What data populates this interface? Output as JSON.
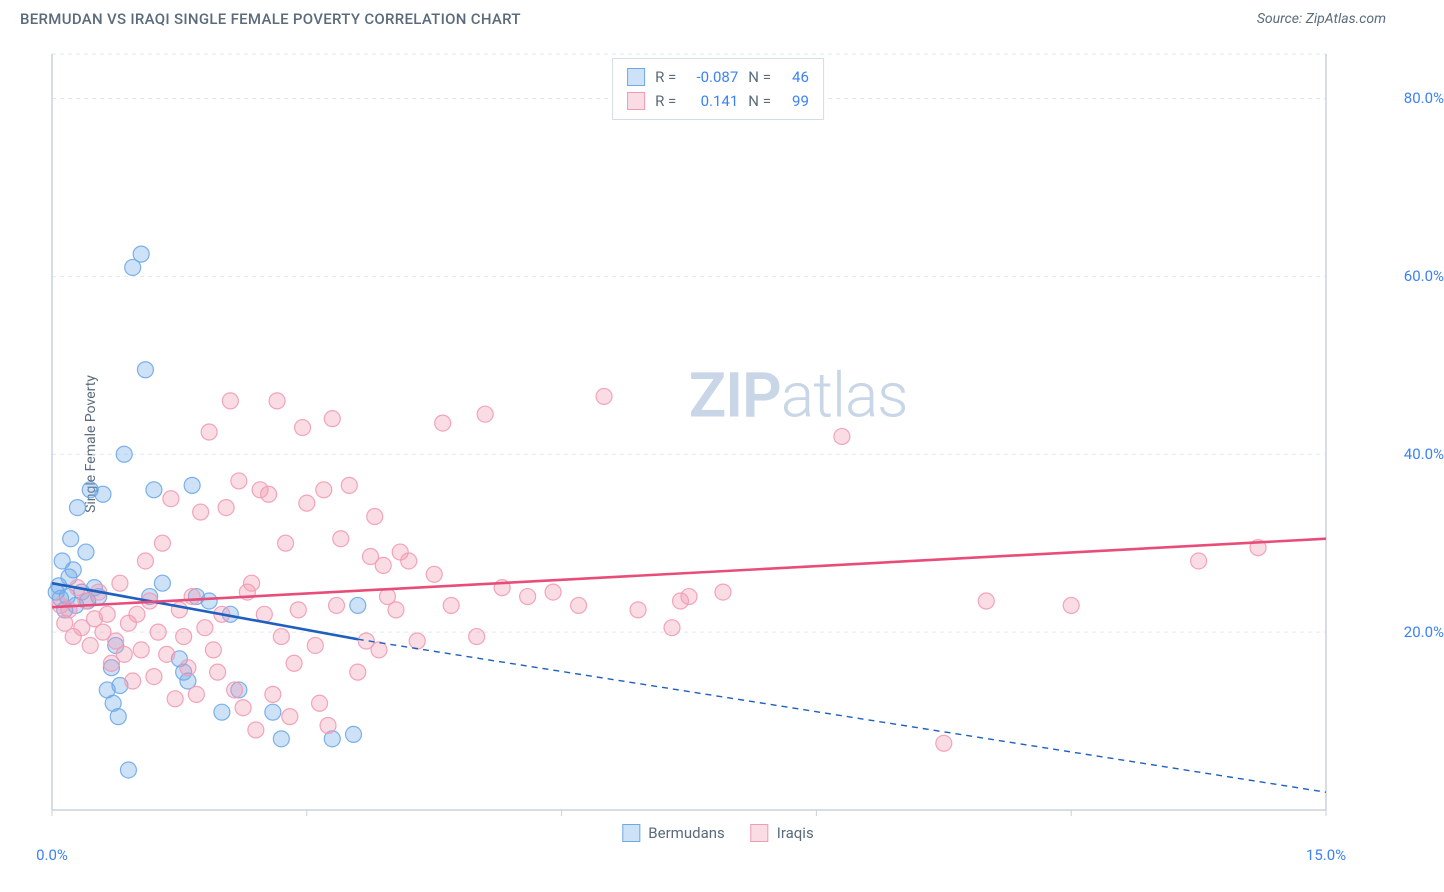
{
  "header": {
    "title": "BERMUDAN VS IRAQI SINGLE FEMALE POVERTY CORRELATION CHART",
    "source": "Source: ZipAtlas.com"
  },
  "watermark": {
    "bold": "ZIP",
    "light": "atlas"
  },
  "chart": {
    "type": "scatter",
    "y_axis_label": "Single Female Poverty",
    "background_color": "#ffffff",
    "grid_color": "#e2e8f0",
    "axis_color": "#c8d2dc",
    "xlim": [
      0,
      15
    ],
    "ylim": [
      0,
      85
    ],
    "x_ticks": [
      0,
      3,
      6,
      9,
      12,
      15
    ],
    "x_tick_labels": [
      "0.0%",
      "",
      "",
      "",
      "",
      "15.0%"
    ],
    "y_ticks": [
      20,
      40,
      60,
      80
    ],
    "y_tick_labels": [
      "20.0%",
      "40.0%",
      "60.0%",
      "80.0%"
    ],
    "marker_radius": 8,
    "marker_fill_opacity": 0.35,
    "marker_stroke_opacity": 0.9,
    "marker_stroke_width": 1.2,
    "trend_line_width": 2.6,
    "dash_pattern": "6 5",
    "series": [
      {
        "key": "bermudans",
        "label": "Bermudans",
        "color": "#6fa8e8",
        "line_color": "#1e5fbf",
        "R": "-0.087",
        "N": "46",
        "trend": {
          "x1": 0,
          "y1": 25.5,
          "x2": 3.6,
          "y2": 19.2,
          "dash_to_x": 15,
          "dash_to_y": 2.0
        },
        "points": [
          [
            0.05,
            24.5
          ],
          [
            0.08,
            25.2
          ],
          [
            0.1,
            23.8
          ],
          [
            0.12,
            28.0
          ],
          [
            0.15,
            22.5
          ],
          [
            0.18,
            24.0
          ],
          [
            0.2,
            26.2
          ],
          [
            0.22,
            30.5
          ],
          [
            0.25,
            27.0
          ],
          [
            0.28,
            23.0
          ],
          [
            0.3,
            34.0
          ],
          [
            0.35,
            24.5
          ],
          [
            0.4,
            29.0
          ],
          [
            0.42,
            23.5
          ],
          [
            0.45,
            36.0
          ],
          [
            0.5,
            25.0
          ],
          [
            0.55,
            24.0
          ],
          [
            0.6,
            35.5
          ],
          [
            0.65,
            13.5
          ],
          [
            0.7,
            16.0
          ],
          [
            0.72,
            12.0
          ],
          [
            0.75,
            18.5
          ],
          [
            0.78,
            10.5
          ],
          [
            0.8,
            14.0
          ],
          [
            0.85,
            40.0
          ],
          [
            0.9,
            4.5
          ],
          [
            0.95,
            61.0
          ],
          [
            1.05,
            62.5
          ],
          [
            1.1,
            49.5
          ],
          [
            1.15,
            24.0
          ],
          [
            1.2,
            36.0
          ],
          [
            1.3,
            25.5
          ],
          [
            1.5,
            17.0
          ],
          [
            1.55,
            15.5
          ],
          [
            1.6,
            14.5
          ],
          [
            1.65,
            36.5
          ],
          [
            1.7,
            24.0
          ],
          [
            1.85,
            23.5
          ],
          [
            2.0,
            11.0
          ],
          [
            2.1,
            22.0
          ],
          [
            2.2,
            13.5
          ],
          [
            2.6,
            11.0
          ],
          [
            2.7,
            8.0
          ],
          [
            3.3,
            8.0
          ],
          [
            3.55,
            8.5
          ],
          [
            3.6,
            23.0
          ]
        ]
      },
      {
        "key": "iraqis",
        "label": "Iraqis",
        "color": "#f29bb3",
        "line_color": "#e84d7a",
        "R": "0.141",
        "N": "99",
        "trend": {
          "x1": 0,
          "y1": 22.8,
          "x2": 15,
          "y2": 30.5
        },
        "points": [
          [
            0.1,
            23.0
          ],
          [
            0.15,
            21.0
          ],
          [
            0.2,
            22.5
          ],
          [
            0.25,
            19.5
          ],
          [
            0.3,
            25.0
          ],
          [
            0.35,
            20.5
          ],
          [
            0.4,
            23.5
          ],
          [
            0.45,
            18.5
          ],
          [
            0.5,
            21.5
          ],
          [
            0.55,
            24.5
          ],
          [
            0.6,
            20.0
          ],
          [
            0.65,
            22.0
          ],
          [
            0.7,
            16.5
          ],
          [
            0.75,
            19.0
          ],
          [
            0.8,
            25.5
          ],
          [
            0.85,
            17.5
          ],
          [
            0.9,
            21.0
          ],
          [
            0.95,
            14.5
          ],
          [
            1.0,
            22.0
          ],
          [
            1.05,
            18.0
          ],
          [
            1.1,
            28.0
          ],
          [
            1.15,
            23.5
          ],
          [
            1.2,
            15.0
          ],
          [
            1.25,
            20.0
          ],
          [
            1.3,
            30.0
          ],
          [
            1.35,
            17.5
          ],
          [
            1.4,
            35.0
          ],
          [
            1.45,
            12.5
          ],
          [
            1.5,
            22.5
          ],
          [
            1.55,
            19.5
          ],
          [
            1.6,
            16.0
          ],
          [
            1.65,
            24.0
          ],
          [
            1.7,
            13.0
          ],
          [
            1.75,
            33.5
          ],
          [
            1.8,
            20.5
          ],
          [
            1.85,
            42.5
          ],
          [
            1.9,
            18.0
          ],
          [
            1.95,
            15.5
          ],
          [
            2.0,
            22.0
          ],
          [
            2.05,
            34.0
          ],
          [
            2.1,
            46.0
          ],
          [
            2.15,
            13.5
          ],
          [
            2.2,
            37.0
          ],
          [
            2.25,
            11.5
          ],
          [
            2.3,
            24.5
          ],
          [
            2.35,
            25.5
          ],
          [
            2.4,
            9.0
          ],
          [
            2.45,
            36.0
          ],
          [
            2.5,
            22.0
          ],
          [
            2.55,
            35.5
          ],
          [
            2.6,
            13.0
          ],
          [
            2.65,
            46.0
          ],
          [
            2.7,
            19.5
          ],
          [
            2.75,
            30.0
          ],
          [
            2.8,
            10.5
          ],
          [
            2.85,
            16.5
          ],
          [
            2.9,
            22.5
          ],
          [
            2.95,
            43.0
          ],
          [
            3.0,
            34.5
          ],
          [
            3.1,
            18.5
          ],
          [
            3.15,
            12.0
          ],
          [
            3.2,
            36.0
          ],
          [
            3.25,
            9.5
          ],
          [
            3.3,
            44.0
          ],
          [
            3.35,
            23.0
          ],
          [
            3.4,
            30.5
          ],
          [
            3.5,
            36.5
          ],
          [
            3.6,
            15.5
          ],
          [
            3.7,
            19.0
          ],
          [
            3.75,
            28.5
          ],
          [
            3.8,
            33.0
          ],
          [
            3.85,
            18.0
          ],
          [
            3.9,
            27.5
          ],
          [
            3.95,
            24.0
          ],
          [
            4.05,
            22.5
          ],
          [
            4.1,
            29.0
          ],
          [
            4.2,
            28.0
          ],
          [
            4.3,
            19.0
          ],
          [
            4.5,
            26.5
          ],
          [
            4.6,
            43.5
          ],
          [
            4.7,
            23.0
          ],
          [
            5.0,
            19.5
          ],
          [
            5.1,
            44.5
          ],
          [
            5.3,
            25.0
          ],
          [
            5.6,
            24.0
          ],
          [
            5.9,
            24.5
          ],
          [
            6.2,
            23.0
          ],
          [
            6.5,
            46.5
          ],
          [
            6.9,
            22.5
          ],
          [
            7.3,
            20.5
          ],
          [
            7.4,
            23.5
          ],
          [
            7.5,
            24.0
          ],
          [
            7.9,
            24.5
          ],
          [
            9.3,
            42.0
          ],
          [
            10.5,
            7.5
          ],
          [
            11.0,
            23.5
          ],
          [
            12.0,
            23.0
          ],
          [
            13.5,
            28.0
          ],
          [
            14.2,
            29.5
          ]
        ]
      }
    ],
    "stats_box": {
      "label_R": "R =",
      "label_N": "N ="
    },
    "legend": {
      "position": "bottom"
    }
  }
}
